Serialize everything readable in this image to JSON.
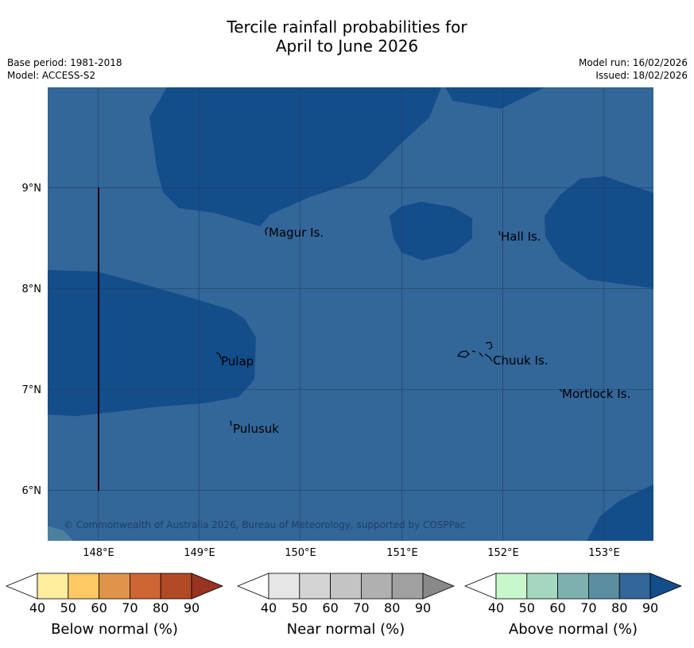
{
  "title": {
    "line1": "Tercile rainfall probabilities for",
    "line2": "April to June 2026"
  },
  "metadata": {
    "base_period": "Base period: 1981-2018",
    "model": "Model: ACCESS-S2",
    "model_run": "Model run: 16/02/2026",
    "issued": "Issued: 18/02/2026"
  },
  "map": {
    "latitude_labels": [
      "9°N",
      "8°N",
      "7°N",
      "6°N"
    ],
    "longitude_labels": [
      "148°E",
      "149°E",
      "150°E",
      "151°E",
      "152°E",
      "153°E"
    ],
    "places": [
      {
        "name": "Magur Is."
      },
      {
        "name": "Hall Is."
      },
      {
        "name": "Pulap"
      },
      {
        "name": "Chuuk Is."
      },
      {
        "name": "Mortlock Is."
      },
      {
        "name": "Pulusuk"
      }
    ],
    "copyright": "© Commonwealth of Australia 2026, Bureau of Meteorology, supported by COSPPac",
    "colors": {
      "above_70_80": "#336699",
      "above_80_90": "#134d8a",
      "above_60_70": "#5a92a3",
      "gridline": "#1e3f66"
    }
  },
  "legends": [
    {
      "title": "Below normal (%)",
      "ticks": [
        "40",
        "50",
        "60",
        "70",
        "80",
        "90"
      ],
      "colors": [
        "#ffffff",
        "#ffeda0",
        "#fec864",
        "#e0944a",
        "#cf6434",
        "#b34a26",
        "#993322"
      ]
    },
    {
      "title": "Near normal (%)",
      "ticks": [
        "40",
        "50",
        "60",
        "70",
        "80",
        "90"
      ],
      "colors": [
        "#ffffff",
        "#e6e6e6",
        "#d4d4d4",
        "#c4c4c4",
        "#b0b0b0",
        "#a0a0a0",
        "#888888"
      ]
    },
    {
      "title": "Above normal (%)",
      "ticks": [
        "40",
        "50",
        "60",
        "70",
        "80",
        "90"
      ],
      "colors": [
        "#ffffff",
        "#c8f7cc",
        "#a4d7bf",
        "#7eb0b0",
        "#5b8ea0",
        "#336699",
        "#134d8a"
      ]
    }
  ]
}
